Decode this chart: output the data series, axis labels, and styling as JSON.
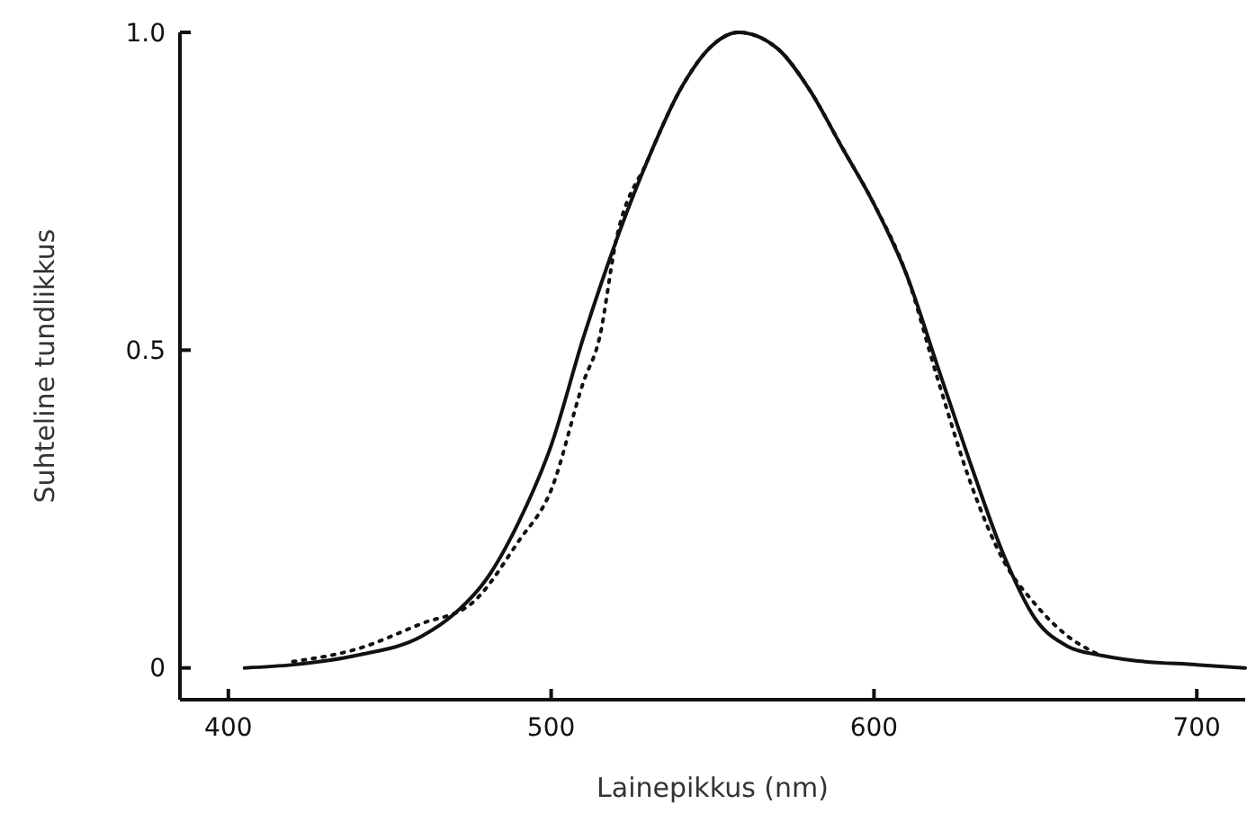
{
  "chart_data": {
    "type": "line",
    "xlabel": "Lainepikkus (nm)",
    "ylabel": "Suhteline tundlikkus",
    "xlim": [
      385,
      715
    ],
    "xticks": [
      400,
      500,
      600,
      700
    ],
    "ylim": [
      -0.05,
      1.0
    ],
    "yticks": [
      0,
      0.5,
      {
        "value": 1.0,
        "label": "1.0"
      }
    ],
    "marker": "none",
    "series": [
      {
        "color": "#111111",
        "line_style": "solid",
        "x": [
          405,
          420,
          440,
          460,
          470,
          480,
          490,
          500,
          510,
          520,
          530,
          540,
          550,
          558,
          570,
          580,
          590,
          600,
          610,
          620,
          630,
          640,
          650,
          660,
          670,
          680,
          700,
          715
        ],
        "values": [
          0,
          0.005,
          0.02,
          0.05,
          0.085,
          0.14,
          0.23,
          0.35,
          0.52,
          0.67,
          0.8,
          0.91,
          0.98,
          1.0,
          0.975,
          0.91,
          0.82,
          0.73,
          0.62,
          0.47,
          0.32,
          0.18,
          0.077,
          0.034,
          0.02,
          0.012,
          0.005,
          0
        ]
      },
      {
        "color": "#111111",
        "line_style": "dotted",
        "x": [
          420,
          440,
          460,
          475,
          490,
          500,
          510,
          515,
          520,
          530,
          540,
          550,
          558,
          570,
          580,
          590,
          600,
          610,
          620,
          630,
          640,
          650,
          660,
          670
        ],
        "values": [
          0.01,
          0.03,
          0.07,
          0.1,
          0.2,
          0.28,
          0.45,
          0.52,
          0.67,
          0.8,
          0.91,
          0.98,
          1.0,
          0.975,
          0.91,
          0.82,
          0.73,
          0.62,
          0.45,
          0.29,
          0.17,
          0.1,
          0.05,
          0.02
        ]
      }
    ]
  }
}
